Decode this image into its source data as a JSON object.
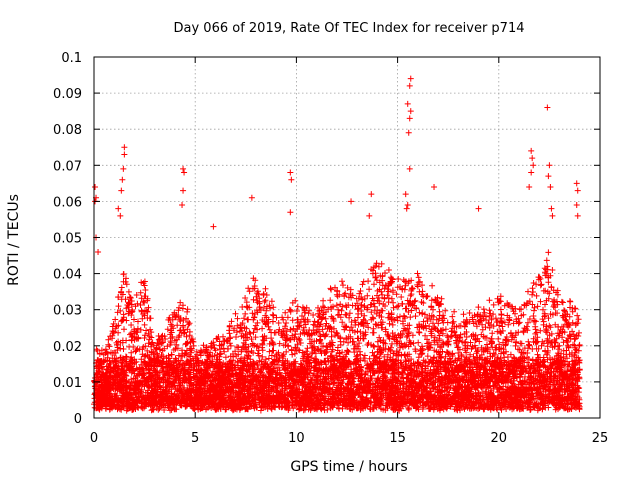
{
  "chart_data": {
    "type": "scatter",
    "title": "Day 066 of 2019, Rate Of TEC Index for receiver p714",
    "xlabel": "GPS time / hours",
    "ylabel": "ROTI / TECUs",
    "xlim": [
      0,
      25
    ],
    "ylim": [
      0,
      0.1
    ],
    "xticks": [
      0,
      5,
      10,
      15,
      20,
      25
    ],
    "xtick_labels": [
      "0",
      "5",
      "10",
      "15",
      "20",
      "25"
    ],
    "yticks": [
      0,
      0.01,
      0.02,
      0.03,
      0.04,
      0.05,
      0.06,
      0.07,
      0.08,
      0.09,
      0.1
    ],
    "ytick_labels": [
      "0",
      "0.01",
      "0.02",
      "0.03",
      "0.04",
      "0.05",
      "0.06",
      "0.07",
      "0.08",
      "0.09",
      "0.1"
    ],
    "grid": true,
    "marker": "+",
    "color": "#ff0000",
    "series": [
      {
        "name": "ROTI",
        "x_range": [
          0,
          24
        ],
        "typical_y_range": [
          0.003,
          0.03
        ],
        "outliers": [
          {
            "x": 0.05,
            "y": 0.064
          },
          {
            "x": 0.1,
            "y": 0.061
          },
          {
            "x": 0.05,
            "y": 0.06
          },
          {
            "x": 0.1,
            "y": 0.05
          },
          {
            "x": 0.2,
            "y": 0.046
          },
          {
            "x": 1.2,
            "y": 0.058
          },
          {
            "x": 1.3,
            "y": 0.056
          },
          {
            "x": 1.4,
            "y": 0.066
          },
          {
            "x": 1.5,
            "y": 0.075
          },
          {
            "x": 1.5,
            "y": 0.073
          },
          {
            "x": 1.45,
            "y": 0.069
          },
          {
            "x": 1.35,
            "y": 0.063
          },
          {
            "x": 4.4,
            "y": 0.069
          },
          {
            "x": 4.45,
            "y": 0.068
          },
          {
            "x": 4.4,
            "y": 0.063
          },
          {
            "x": 4.35,
            "y": 0.059
          },
          {
            "x": 5.9,
            "y": 0.053
          },
          {
            "x": 7.8,
            "y": 0.061
          },
          {
            "x": 9.7,
            "y": 0.068
          },
          {
            "x": 9.75,
            "y": 0.066
          },
          {
            "x": 9.7,
            "y": 0.057
          },
          {
            "x": 12.7,
            "y": 0.06
          },
          {
            "x": 13.7,
            "y": 0.062
          },
          {
            "x": 13.6,
            "y": 0.056
          },
          {
            "x": 15.65,
            "y": 0.094
          },
          {
            "x": 15.6,
            "y": 0.092
          },
          {
            "x": 15.5,
            "y": 0.087
          },
          {
            "x": 15.65,
            "y": 0.085
          },
          {
            "x": 15.6,
            "y": 0.083
          },
          {
            "x": 15.55,
            "y": 0.079
          },
          {
            "x": 15.6,
            "y": 0.069
          },
          {
            "x": 15.4,
            "y": 0.062
          },
          {
            "x": 15.5,
            "y": 0.059
          },
          {
            "x": 15.45,
            "y": 0.058
          },
          {
            "x": 16.8,
            "y": 0.064
          },
          {
            "x": 19.0,
            "y": 0.058
          },
          {
            "x": 21.6,
            "y": 0.074
          },
          {
            "x": 21.65,
            "y": 0.072
          },
          {
            "x": 21.7,
            "y": 0.07
          },
          {
            "x": 21.6,
            "y": 0.068
          },
          {
            "x": 21.5,
            "y": 0.064
          },
          {
            "x": 22.4,
            "y": 0.086
          },
          {
            "x": 22.5,
            "y": 0.07
          },
          {
            "x": 22.45,
            "y": 0.067
          },
          {
            "x": 22.55,
            "y": 0.064
          },
          {
            "x": 22.6,
            "y": 0.058
          },
          {
            "x": 22.65,
            "y": 0.056
          },
          {
            "x": 23.85,
            "y": 0.065
          },
          {
            "x": 23.9,
            "y": 0.063
          },
          {
            "x": 23.85,
            "y": 0.059
          },
          {
            "x": 23.9,
            "y": 0.056
          }
        ]
      }
    ]
  }
}
